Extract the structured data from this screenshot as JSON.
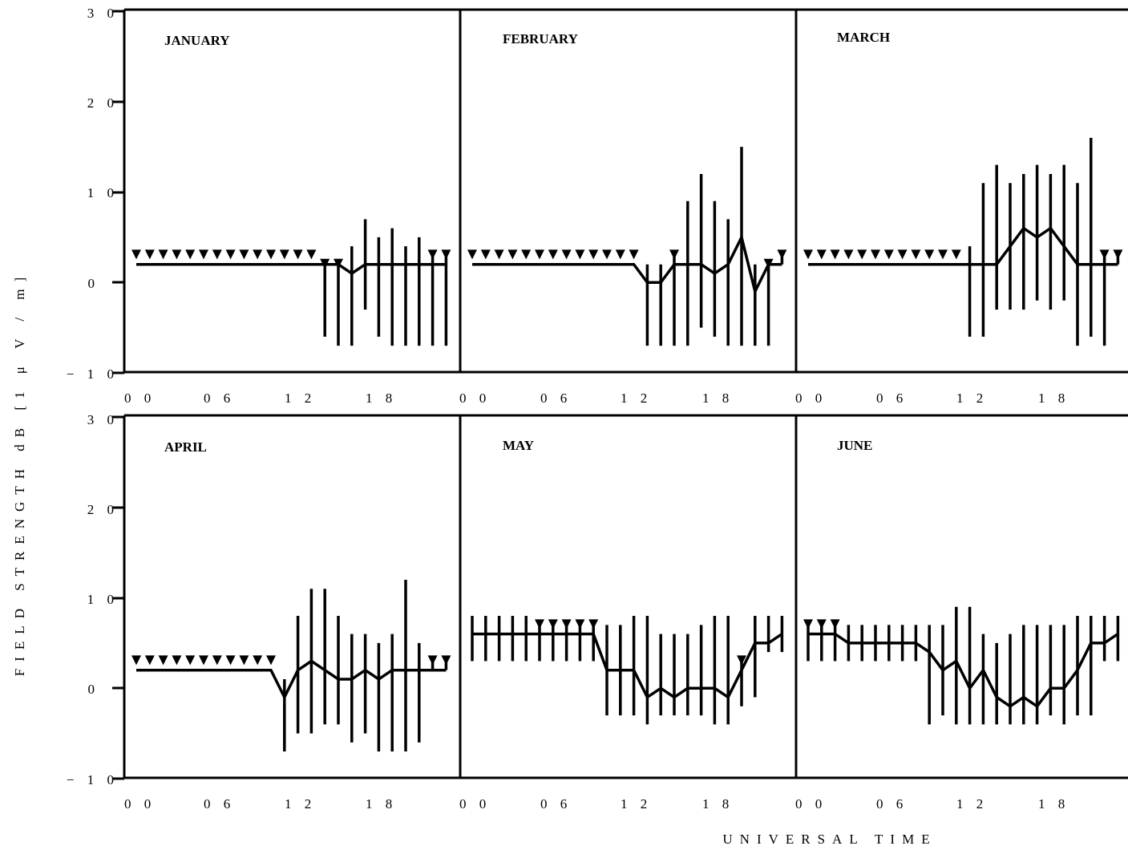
{
  "chart_data": {
    "type": "line",
    "ylabel": "FIELD STRENGTH  dB  [1 μ V / m]",
    "xlabel": "UNIVERSAL TIME",
    "ylim": [
      -10,
      30
    ],
    "xlim": [
      0,
      24
    ],
    "y_ticks": [
      "3 0",
      "2 0",
      "1 0",
      "0",
      "− 1 0"
    ],
    "x_ticks": [
      "0 0",
      "0 6",
      "1 2",
      "1 8"
    ],
    "panels": [
      {
        "title": "JANUARY",
        "hours": [
          0,
          1,
          2,
          3,
          4,
          5,
          6,
          7,
          8,
          9,
          10,
          11,
          12,
          13,
          14,
          15,
          16,
          17,
          18,
          19,
          20,
          21,
          22,
          23
        ],
        "median": [
          2,
          2,
          2,
          2,
          2,
          2,
          2,
          2,
          2,
          2,
          2,
          2,
          2,
          2,
          2,
          2,
          1,
          2,
          2,
          2,
          2,
          2,
          2,
          2
        ],
        "upper": [
          null,
          null,
          null,
          null,
          null,
          null,
          null,
          null,
          null,
          null,
          null,
          null,
          null,
          null,
          2,
          2,
          4,
          7,
          5,
          6,
          4,
          5,
          3,
          3
        ],
        "lower": [
          null,
          null,
          null,
          null,
          null,
          null,
          null,
          null,
          null,
          null,
          null,
          null,
          null,
          null,
          -6,
          -7,
          -7,
          -3,
          -6,
          -7,
          -7,
          -7,
          -7,
          -7
        ]
      },
      {
        "title": "FEBRUARY",
        "hours": [
          0,
          1,
          2,
          3,
          4,
          5,
          6,
          7,
          8,
          9,
          10,
          11,
          12,
          13,
          14,
          15,
          16,
          17,
          18,
          19,
          20,
          21,
          22,
          23
        ],
        "median": [
          2,
          2,
          2,
          2,
          2,
          2,
          2,
          2,
          2,
          2,
          2,
          2,
          2,
          0,
          0,
          2,
          2,
          2,
          1,
          2,
          5,
          -1,
          2,
          2
        ],
        "upper": [
          null,
          null,
          null,
          null,
          null,
          null,
          null,
          null,
          null,
          null,
          null,
          null,
          null,
          2,
          2,
          3,
          9,
          12,
          9,
          7,
          15,
          2,
          2,
          3
        ],
        "lower": [
          null,
          null,
          null,
          null,
          null,
          null,
          null,
          null,
          null,
          null,
          null,
          null,
          null,
          -7,
          -7,
          -7,
          -7,
          -5,
          -6,
          -7,
          -7,
          -7,
          -7,
          2
        ]
      },
      {
        "title": "MARCH",
        "hours": [
          0,
          1,
          2,
          3,
          4,
          5,
          6,
          7,
          8,
          9,
          10,
          11,
          12,
          13,
          14,
          15,
          16,
          17,
          18,
          19,
          20,
          21,
          22,
          23
        ],
        "median": [
          2,
          2,
          2,
          2,
          2,
          2,
          2,
          2,
          2,
          2,
          2,
          2,
          2,
          2,
          2,
          4,
          6,
          5,
          6,
          4,
          2,
          2,
          2,
          2
        ],
        "upper": [
          null,
          null,
          null,
          null,
          null,
          null,
          null,
          null,
          null,
          null,
          null,
          null,
          4,
          11,
          13,
          11,
          12,
          13,
          12,
          13,
          11,
          16,
          3,
          3
        ],
        "lower": [
          null,
          null,
          null,
          null,
          null,
          null,
          null,
          null,
          null,
          null,
          null,
          null,
          -6,
          -6,
          -3,
          -3,
          -3,
          -2,
          -3,
          -2,
          -7,
          -6,
          -7,
          2
        ]
      },
      {
        "title": "APRIL",
        "hours": [
          0,
          1,
          2,
          3,
          4,
          5,
          6,
          7,
          8,
          9,
          10,
          11,
          12,
          13,
          14,
          15,
          16,
          17,
          18,
          19,
          20,
          21,
          22,
          23
        ],
        "median": [
          2,
          2,
          2,
          2,
          2,
          2,
          2,
          2,
          2,
          2,
          2,
          -1,
          2,
          3,
          2,
          1,
          1,
          2,
          1,
          2,
          2,
          2,
          2,
          2
        ],
        "upper": [
          null,
          null,
          null,
          null,
          null,
          null,
          null,
          null,
          null,
          null,
          null,
          1,
          8,
          11,
          11,
          8,
          6,
          6,
          5,
          6,
          12,
          5,
          3,
          3
        ],
        "lower": [
          null,
          null,
          null,
          null,
          null,
          null,
          null,
          null,
          null,
          null,
          null,
          -7,
          -5,
          -5,
          -4,
          -4,
          -6,
          -5,
          -7,
          -7,
          -7,
          -6,
          2,
          2
        ]
      },
      {
        "title": "MAY",
        "hours": [
          0,
          1,
          2,
          3,
          4,
          5,
          6,
          7,
          8,
          9,
          10,
          11,
          12,
          13,
          14,
          15,
          16,
          17,
          18,
          19,
          20,
          21,
          22,
          23
        ],
        "median": [
          6,
          6,
          6,
          6,
          6,
          6,
          6,
          6,
          6,
          6,
          2,
          2,
          2,
          -1,
          0,
          -1,
          0,
          0,
          0,
          -1,
          2,
          5,
          5,
          6
        ],
        "upper": [
          8,
          8,
          8,
          8,
          8,
          7,
          7,
          7,
          7,
          7,
          7,
          7,
          8,
          8,
          6,
          6,
          6,
          7,
          8,
          8,
          3,
          8,
          8,
          8
        ],
        "lower": [
          3,
          3,
          3,
          3,
          3,
          3,
          3,
          3,
          3,
          3,
          -3,
          -3,
          -3,
          -4,
          -3,
          -3,
          -3,
          -3,
          -4,
          -4,
          -2,
          -1,
          4,
          4
        ]
      },
      {
        "title": "JUNE",
        "hours": [
          0,
          1,
          2,
          3,
          4,
          5,
          6,
          7,
          8,
          9,
          10,
          11,
          12,
          13,
          14,
          15,
          16,
          17,
          18,
          19,
          20,
          21,
          22,
          23
        ],
        "median": [
          6,
          6,
          6,
          5,
          5,
          5,
          5,
          5,
          5,
          4,
          2,
          3,
          0,
          2,
          -1,
          -2,
          -1,
          -2,
          0,
          0,
          2,
          5,
          5,
          6
        ],
        "upper": [
          7,
          7,
          7,
          7,
          7,
          7,
          7,
          7,
          7,
          7,
          7,
          9,
          9,
          6,
          5,
          6,
          7,
          7,
          7,
          7,
          8,
          8,
          8,
          8
        ],
        "lower": [
          3,
          3,
          3,
          3,
          3,
          3,
          3,
          3,
          3,
          -4,
          -3,
          -4,
          -4,
          -4,
          -4,
          -4,
          -4,
          -4,
          -3,
          -4,
          -3,
          -3,
          3,
          3
        ]
      }
    ]
  }
}
